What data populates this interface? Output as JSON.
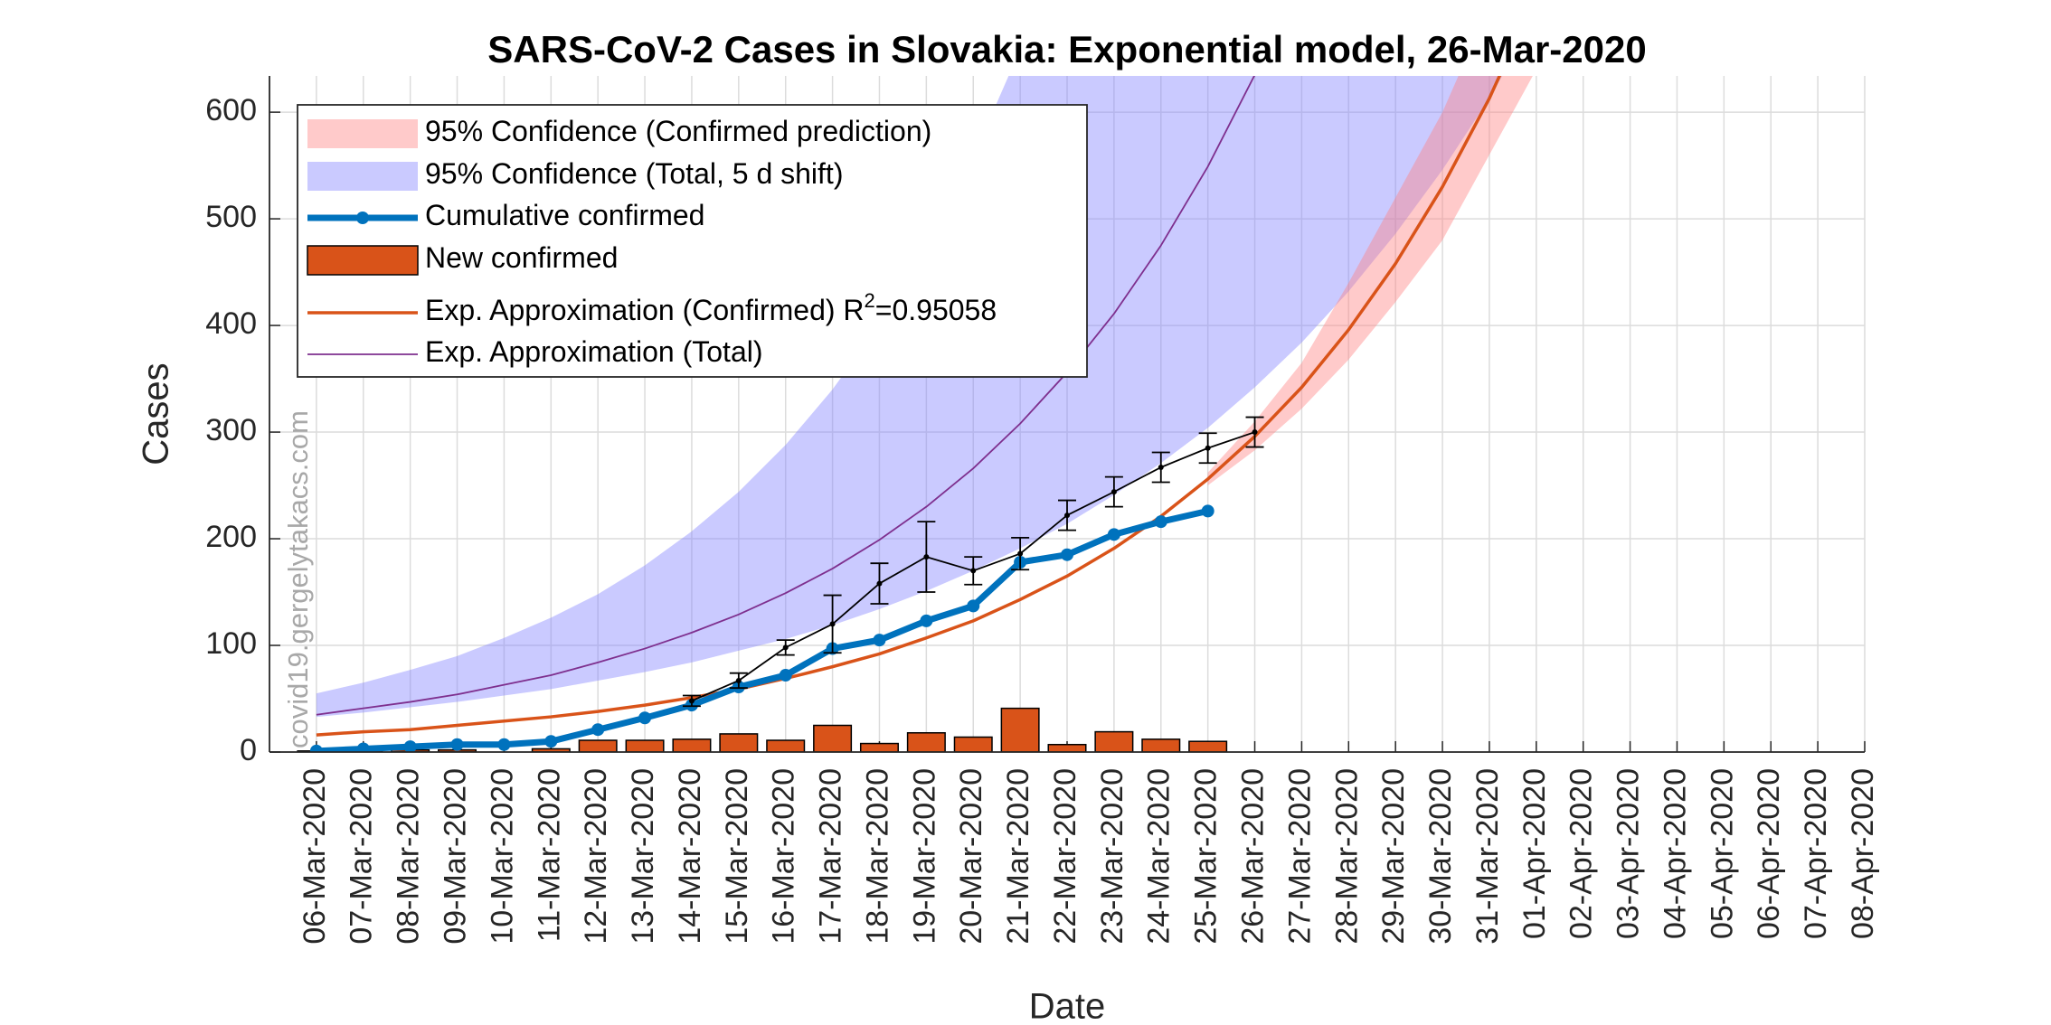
{
  "chart_data": {
    "type": "combo",
    "title": "SARS-CoV-2 Cases in Slovakia: Exponential model, 26-Mar-2020",
    "x_label": "Date",
    "y_label": "Cases",
    "watermark": "covid19.gergelytakacs.com",
    "categories": [
      "06-Mar-2020",
      "07-Mar-2020",
      "08-Mar-2020",
      "09-Mar-2020",
      "10-Mar-2020",
      "11-Mar-2020",
      "12-Mar-2020",
      "13-Mar-2020",
      "14-Mar-2020",
      "15-Mar-2020",
      "16-Mar-2020",
      "17-Mar-2020",
      "18-Mar-2020",
      "19-Mar-2020",
      "20-Mar-2020",
      "21-Mar-2020",
      "22-Mar-2020",
      "23-Mar-2020",
      "24-Mar-2020",
      "25-Mar-2020",
      "26-Mar-2020",
      "27-Mar-2020",
      "28-Mar-2020",
      "29-Mar-2020",
      "30-Mar-2020",
      "31-Mar-2020",
      "01-Apr-2020",
      "02-Apr-2020",
      "03-Apr-2020",
      "04-Apr-2020",
      "05-Apr-2020",
      "06-Apr-2020",
      "07-Apr-2020",
      "08-Apr-2020"
    ],
    "ylim": [
      0,
      634
    ],
    "yticks": [
      0,
      100,
      200,
      300,
      400,
      500,
      600
    ],
    "grid": true,
    "legend": "upper left",
    "series": [
      {
        "name": "95% Confidence (Confirmed prediction)",
        "type": "band",
        "color": "#ff8080",
        "lower": [
          null,
          null,
          null,
          null,
          null,
          null,
          null,
          null,
          null,
          null,
          null,
          null,
          null,
          null,
          null,
          null,
          null,
          null,
          null,
          250,
          283,
          322,
          368,
          422,
          480,
          560,
          640,
          null,
          null,
          null,
          null,
          null,
          null,
          null
        ],
        "upper": [
          null,
          null,
          null,
          null,
          null,
          null,
          null,
          null,
          null,
          null,
          null,
          null,
          null,
          null,
          null,
          null,
          null,
          null,
          null,
          262,
          310,
          365,
          440,
          520,
          600,
          700,
          800,
          null,
          null,
          null,
          null,
          null,
          null,
          null
        ]
      },
      {
        "name": "95% Confidence (Total, 5 d shift)",
        "type": "band",
        "color": "#8080ff",
        "lower": [
          33,
          37,
          42,
          47,
          53,
          59,
          67,
          75,
          84,
          95,
          106,
          119,
          134,
          151,
          170,
          191,
          214,
          241,
          271,
          304,
          342,
          384,
          432,
          486,
          546,
          613,
          689,
          null,
          null,
          null,
          null,
          null,
          null,
          null
        ],
        "upper": [
          55,
          65,
          77,
          90,
          107,
          126,
          148,
          175,
          207,
          244,
          288,
          340,
          401,
          473,
          558,
          659,
          777,
          917,
          1082,
          1277,
          1507,
          1778,
          2098,
          2475,
          2921,
          3447,
          4067,
          null,
          null,
          null,
          null,
          null,
          null,
          null
        ]
      },
      {
        "name": "Cumulative confirmed",
        "type": "line-marker",
        "color": "#0072bd",
        "values": [
          1,
          3,
          5,
          7,
          7,
          10,
          21,
          32,
          44,
          61,
          72,
          97,
          105,
          123,
          137,
          178,
          185,
          204,
          216,
          226,
          null,
          null,
          null,
          null,
          null,
          null,
          null,
          null,
          null,
          null,
          null,
          null,
          null,
          null
        ]
      },
      {
        "name": "New confirmed",
        "type": "bar",
        "color": "#d95319",
        "values": [
          1,
          2,
          2,
          2,
          0,
          3,
          11,
          11,
          12,
          17,
          11,
          25,
          8,
          18,
          14,
          41,
          7,
          19,
          12,
          10,
          null,
          null,
          null,
          null,
          null,
          null,
          null,
          null,
          null,
          null,
          null,
          null,
          null,
          null
        ]
      },
      {
        "name": "Exp. Approximation (Confirmed) R",
        "name_sup": "2",
        "name_suffix": "=0.95058",
        "type": "line",
        "color": "#d95319",
        "values": [
          16,
          19,
          21,
          25,
          29,
          33,
          38,
          44,
          51,
          59,
          69,
          80,
          92,
          107,
          123,
          143,
          165,
          191,
          221,
          256,
          296,
          342,
          396,
          458,
          530,
          613,
          710,
          null,
          null,
          null,
          null,
          null,
          null,
          null
        ]
      },
      {
        "name": "Exp. Approximation (Total)",
        "type": "thin-line",
        "color": "#7e2f8e",
        "values": [
          35,
          41,
          47,
          54,
          63,
          72,
          84,
          97,
          112,
          129,
          149,
          172,
          199,
          230,
          266,
          308,
          356,
          411,
          475,
          549,
          635,
          null,
          null,
          null,
          null,
          null,
          null,
          null,
          null,
          null,
          null,
          null,
          null,
          null
        ]
      },
      {
        "type": "errorbar",
        "color": "#000000",
        "values": [
          null,
          null,
          null,
          null,
          null,
          null,
          null,
          null,
          48,
          67,
          98,
          120,
          158,
          183,
          170,
          186,
          222,
          244,
          267,
          285,
          300,
          null,
          null,
          null,
          null,
          null,
          null,
          null,
          null,
          null,
          null,
          null,
          null,
          null
        ],
        "errors": [
          null,
          null,
          null,
          null,
          null,
          null,
          null,
          null,
          5,
          7,
          7,
          27,
          19,
          33,
          13,
          15,
          14,
          14,
          14,
          14,
          14,
          null,
          null,
          null,
          null,
          null,
          null,
          null,
          null,
          null,
          null,
          null,
          null,
          null
        ]
      }
    ]
  }
}
